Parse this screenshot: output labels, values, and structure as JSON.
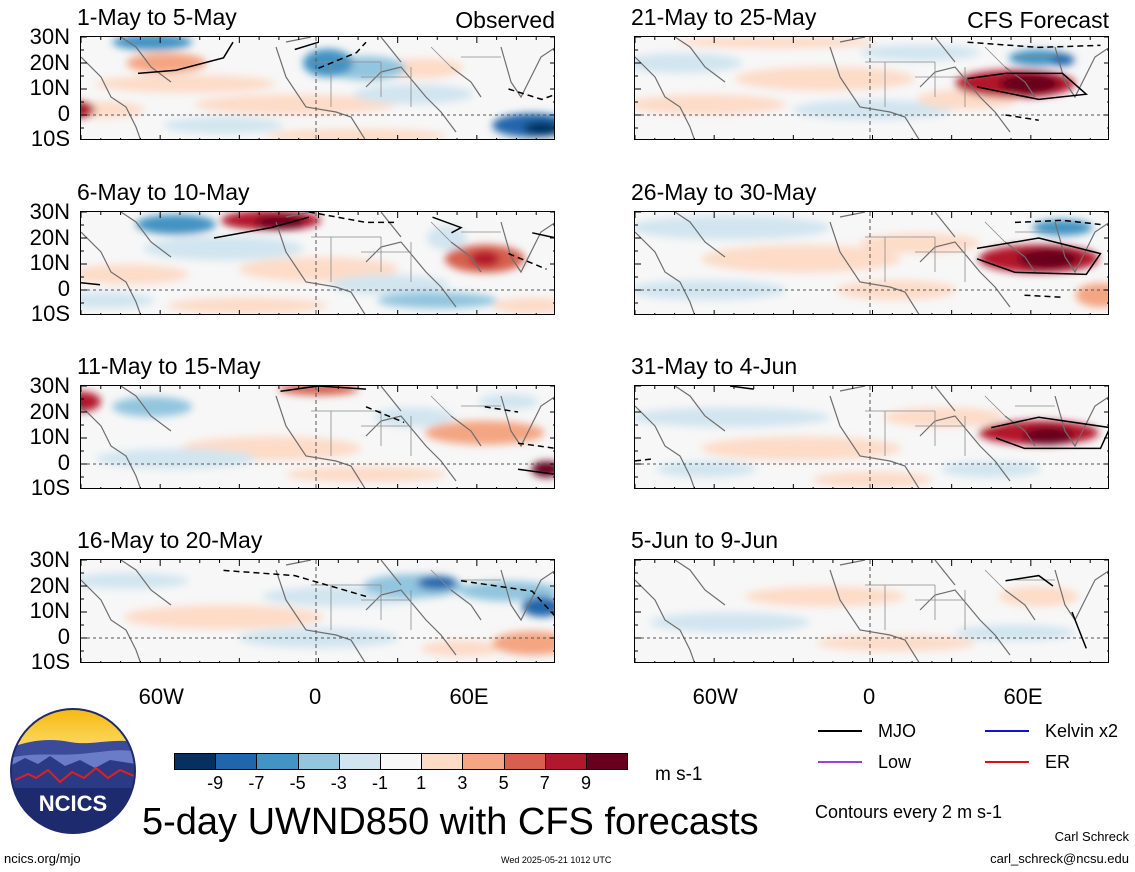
{
  "panels": [
    {
      "title": "1-May to 5-May",
      "tag": "Observed",
      "scene": 0
    },
    {
      "title": "6-May to 10-May",
      "tag": "",
      "scene": 1
    },
    {
      "title": "11-May to 15-May",
      "tag": "",
      "scene": 2
    },
    {
      "title": "16-May to 20-May",
      "tag": "",
      "scene": 3
    },
    {
      "title": "21-May to 25-May",
      "tag": "CFS Forecast",
      "scene": 4
    },
    {
      "title": "26-May to 30-May",
      "tag": "",
      "scene": 5
    },
    {
      "title": "31-May to 4-Jun",
      "tag": "",
      "scene": 6
    },
    {
      "title": "5-Jun to 9-Jun",
      "tag": "",
      "scene": 7
    }
  ],
  "lat_labels": [
    "30N",
    "20N",
    "10N",
    "0",
    "10S"
  ],
  "lon_labels": [
    "60W",
    "0",
    "60E"
  ],
  "legend": {
    "mjo": "MJO",
    "kelvin": "Kelvin x2",
    "low": "Low",
    "er": "ER",
    "colors": {
      "mjo": "#000000",
      "kelvin": "#1010e0",
      "low": "#a040e0",
      "er": "#e01010"
    }
  },
  "colorbar": {
    "labels": [
      "-9",
      "-7",
      "-5",
      "-3",
      "-1",
      "1",
      "3",
      "5",
      "7",
      "9"
    ],
    "colors": [
      "#053061",
      "#2166ac",
      "#4393c3",
      "#92c5de",
      "#d1e5f0",
      "#f7f7f7",
      "#fddbc7",
      "#f4a582",
      "#d6604d",
      "#b2182b",
      "#67001f"
    ],
    "units": "m s-1"
  },
  "title": "5-day UWND850 with CFS forecasts",
  "contour_note": "Contours every 2 m s-1",
  "author": "Carl Schreck",
  "email": "carl_schreck@ncsu.edu",
  "url": "ncics.org/mjo",
  "timestamp": "Wed 2025-05-21 1012 UTC",
  "logo_text": "NCICS"
}
